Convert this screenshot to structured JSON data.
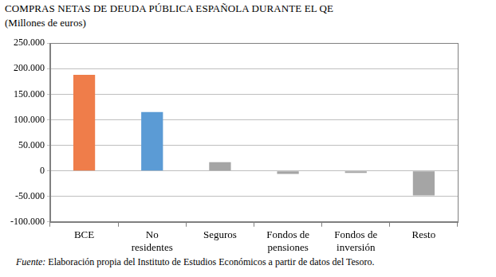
{
  "chart_data": {
    "type": "bar",
    "title": "COMPRAS NETAS DE DEUDA PÚBLICA ESPAÑOLA DURANTE EL QE",
    "subtitle": "(Millones de euros)",
    "source": "Fuente: Elaboración propia del Instituto de Estudios Económicos a partir de datos del Tesoro.",
    "categories": [
      "BCE",
      "No residentes",
      "Seguros",
      "Fondos de pensiones",
      "Fondos de inversión",
      "Resto"
    ],
    "values": [
      188000,
      115000,
      17000,
      -6000,
      -4000,
      -48000
    ],
    "colors": [
      "#ef7d4a",
      "#5b9bd5",
      "#a5a5a5",
      "#a5a5a5",
      "#a5a5a5",
      "#a5a5a5"
    ],
    "ylim": [
      -100000,
      250000
    ],
    "yticks": [
      {
        "value": -100000,
        "label": "-100.000"
      },
      {
        "value": -50000,
        "label": "-50.000"
      },
      0,
      {
        "value": 50000,
        "label": "50.000"
      },
      {
        "value": 100000,
        "label": "100.000"
      },
      {
        "value": 150000,
        "label": "150.000"
      },
      {
        "value": 200000,
        "label": "200.000"
      },
      {
        "value": 250000,
        "label": "250.000"
      }
    ],
    "grid": true
  }
}
